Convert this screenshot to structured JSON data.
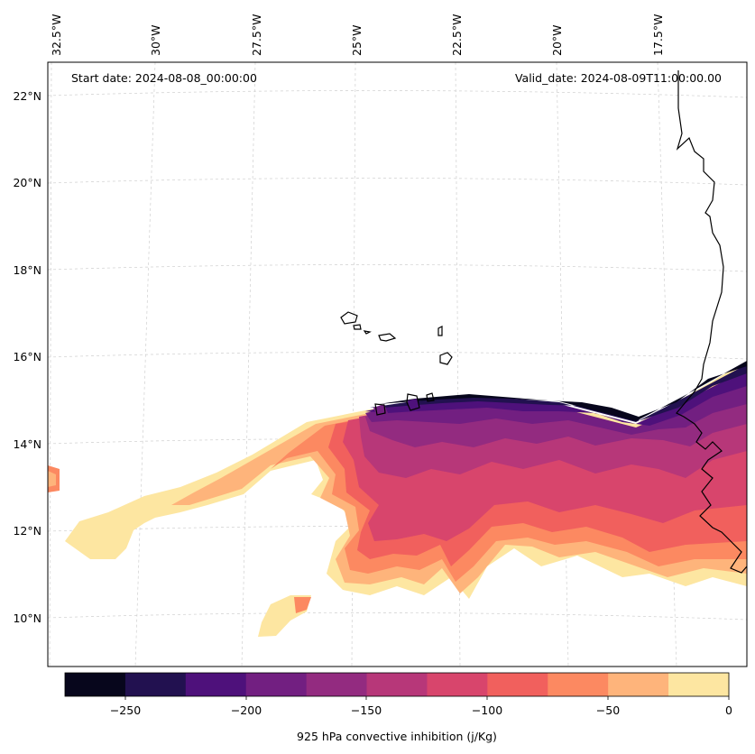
{
  "header": {
    "start_date": "Start date: 2024-08-08_00:00:00",
    "valid_date": "Valid_date: 2024-08-09T11:00:00.00"
  },
  "axes": {
    "lon_labels": [
      "32.5°W",
      "30°W",
      "27.5°W",
      "25°W",
      "22.5°W",
      "20°W",
      "17.5°W"
    ],
    "lat_labels": [
      "22°N",
      "20°N",
      "18°N",
      "16°N",
      "14°N",
      "12°N",
      "10°N"
    ]
  },
  "colorbar": {
    "label": "925 hPa convective inhibition (j/Kg)",
    "ticks": [
      "−250",
      "−200",
      "−150",
      "−100",
      "−50",
      "0"
    ],
    "levels": [
      -275,
      -250,
      -225,
      -200,
      -175,
      -150,
      -125,
      -100,
      -75,
      -50,
      -25,
      0
    ],
    "colors": [
      "#07061c",
      "#221150",
      "#4e117b",
      "#721f81",
      "#932b80",
      "#b73779",
      "#d8456c",
      "#f1605d",
      "#fc8961",
      "#feb47b",
      "#fde6a1"
    ]
  }
}
